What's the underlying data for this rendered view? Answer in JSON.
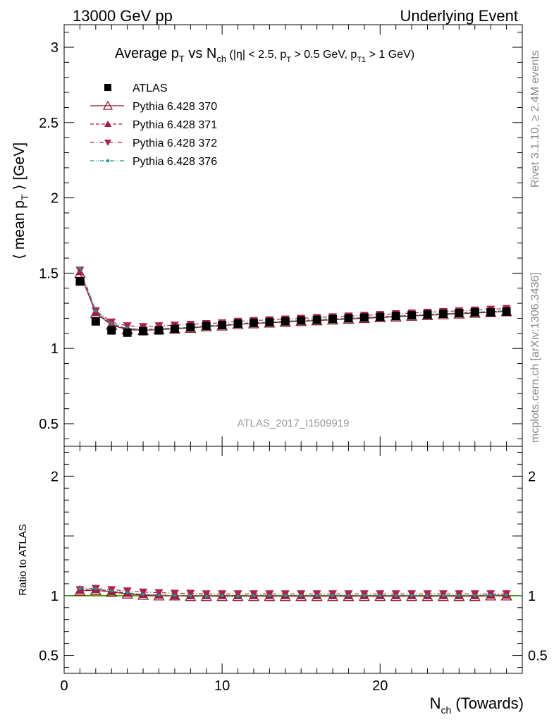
{
  "header": {
    "left": "13000 GeV pp",
    "right": "Underlying Event"
  },
  "watermark": {
    "analysis": "ATLAS_2017_I1509919",
    "side_top": "Rivet 3.1.10, ≥ 2.4M events",
    "side_bottom": "mcplots.cern.ch [arXiv:1306.3436]"
  },
  "title": {
    "main": "Average p",
    "main_sub": "T",
    "vs": " vs N",
    "vs_sub": "ch",
    "cuts_1": " (|η| < 2.5, p",
    "cuts_sub1": "T",
    "cuts_2": " > 0.5 GeV, p",
    "cuts_sub2": "T1",
    "cuts_3": " > 1 GeV)"
  },
  "ylabel_top": {
    "pre": "⟨ mean p",
    "sub": "T",
    "post": " ⟩ [GeV]"
  },
  "ylabel_bottom": "Ratio to ATLAS",
  "xlabel": {
    "pre": "N",
    "sub": "ch",
    "post": " (Towards)"
  },
  "chart_data": {
    "type": "scatter",
    "x": [
      1,
      2,
      3,
      4,
      5,
      6,
      7,
      8,
      9,
      10,
      11,
      12,
      13,
      14,
      15,
      16,
      17,
      18,
      19,
      20,
      21,
      22,
      23,
      24,
      25,
      26,
      27,
      28
    ],
    "xlim": [
      0,
      29
    ],
    "ylim_main": [
      0.35,
      3.15
    ],
    "ylim_ratio": [
      0.35,
      2.25
    ],
    "yticks_main": [
      "0.5",
      "1",
      "1.5",
      "2",
      "2.5",
      "3"
    ],
    "yticks_ratio": [
      "0.5",
      "1",
      "2"
    ],
    "xticks": [
      "0",
      "10",
      "20"
    ],
    "series": [
      {
        "name": "ATLAS",
        "color": "#000000",
        "marker": "square",
        "values": [
          1.445,
          1.18,
          1.12,
          1.105,
          1.115,
          1.12,
          1.13,
          1.14,
          1.15,
          1.155,
          1.165,
          1.17,
          1.175,
          1.18,
          1.185,
          1.19,
          1.195,
          1.2,
          1.205,
          1.21,
          1.215,
          1.22,
          1.225,
          1.23,
          1.235,
          1.24,
          1.24,
          1.245
        ],
        "ratio": [
          1,
          1,
          1,
          1,
          1,
          1,
          1,
          1,
          1,
          1,
          1,
          1,
          1,
          1,
          1,
          1,
          1,
          1,
          1,
          1,
          1,
          1,
          1,
          1,
          1,
          1,
          1,
          1
        ]
      },
      {
        "name": "Pythia 6.428 370",
        "color": "#8b1a2b",
        "marker": "triangle-open",
        "line": "solid",
        "values": [
          1.5,
          1.235,
          1.155,
          1.125,
          1.12,
          1.125,
          1.13,
          1.135,
          1.145,
          1.15,
          1.16,
          1.165,
          1.17,
          1.175,
          1.18,
          1.185,
          1.19,
          1.195,
          1.2,
          1.205,
          1.21,
          1.215,
          1.22,
          1.225,
          1.23,
          1.235,
          1.24,
          1.245
        ],
        "ratio": [
          1.04,
          1.045,
          1.03,
          1.015,
          1.005,
          1.0,
          1.0,
          0.995,
          0.995,
          0.995,
          0.995,
          0.995,
          0.995,
          0.995,
          0.995,
          0.995,
          0.995,
          0.995,
          0.995,
          0.995,
          0.995,
          0.995,
          0.995,
          0.995,
          0.995,
          0.995,
          1.0,
          1.0
        ]
      },
      {
        "name": "Pythia 6.428 371",
        "color": "#a01848",
        "marker": "triangle-up",
        "line": "dashed",
        "values": [
          1.51,
          1.24,
          1.16,
          1.13,
          1.125,
          1.13,
          1.135,
          1.14,
          1.15,
          1.155,
          1.165,
          1.17,
          1.175,
          1.18,
          1.185,
          1.19,
          1.195,
          1.2,
          1.205,
          1.21,
          1.215,
          1.22,
          1.225,
          1.23,
          1.235,
          1.24,
          1.245,
          1.25
        ],
        "ratio": [
          1.045,
          1.05,
          1.035,
          1.02,
          1.01,
          1.005,
          1.0,
          1.0,
          1.0,
          1.0,
          1.0,
          1.0,
          1.0,
          1.0,
          1.0,
          1.0,
          1.0,
          1.0,
          1.0,
          1.0,
          1.0,
          1.0,
          1.0,
          1.0,
          1.0,
          1.0,
          1.005,
          1.005
        ]
      },
      {
        "name": "Pythia 6.428 372",
        "color": "#b0204f",
        "marker": "triangle-down",
        "line": "dashdot",
        "values": [
          1.52,
          1.25,
          1.175,
          1.15,
          1.145,
          1.15,
          1.155,
          1.16,
          1.165,
          1.17,
          1.18,
          1.185,
          1.19,
          1.195,
          1.2,
          1.205,
          1.21,
          1.215,
          1.22,
          1.225,
          1.23,
          1.235,
          1.24,
          1.245,
          1.25,
          1.255,
          1.26,
          1.265
        ],
        "ratio": [
          1.05,
          1.06,
          1.05,
          1.04,
          1.03,
          1.025,
          1.02,
          1.02,
          1.015,
          1.015,
          1.015,
          1.015,
          1.015,
          1.015,
          1.015,
          1.015,
          1.015,
          1.015,
          1.015,
          1.015,
          1.015,
          1.015,
          1.015,
          1.015,
          1.015,
          1.015,
          1.015,
          1.015
        ]
      },
      {
        "name": "Pythia 6.428 376",
        "color": "#1a9a8a",
        "marker": "dot",
        "line": "dashdotdot",
        "values": [
          1.535,
          1.25,
          1.165,
          1.135,
          1.125,
          1.13,
          1.135,
          1.14,
          1.145,
          1.155,
          1.16,
          1.17,
          1.175,
          1.18,
          1.185,
          1.19,
          1.195,
          1.2,
          1.205,
          1.21,
          1.215,
          1.22,
          1.225,
          1.23,
          1.235,
          1.24,
          1.245,
          1.25
        ],
        "ratio": [
          1.06,
          1.06,
          1.04,
          1.025,
          1.01,
          1.005,
          1.0,
          1.0,
          0.995,
          1.0,
          0.995,
          1.0,
          1.0,
          1.0,
          1.0,
          1.0,
          1.0,
          1.0,
          1.0,
          1.0,
          1.0,
          1.0,
          1.0,
          1.0,
          1.0,
          1.0,
          1.005,
          1.005
        ]
      }
    ]
  }
}
